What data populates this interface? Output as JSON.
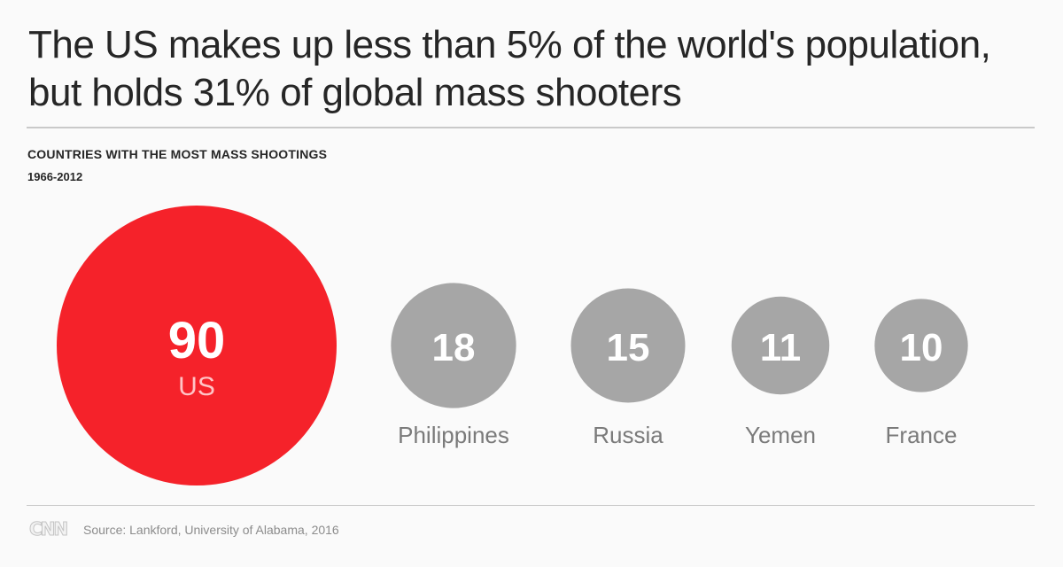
{
  "header": {
    "title_line1": "The US makes up less than 5% of the world's population,",
    "title_line2": "but holds 31% of global mass shooters",
    "subtitle": "COUNTRIES WITH THE MOST MASS SHOOTINGS",
    "period": "1966-2012"
  },
  "chart_data": {
    "type": "bubble",
    "title": "COUNTRIES WITH THE MOST MASS SHOOTINGS",
    "subtitle": "1966-2012",
    "categories": [
      "US",
      "Philippines",
      "Russia",
      "Yemen",
      "France"
    ],
    "values": [
      90,
      18,
      15,
      11,
      10
    ],
    "colors": [
      "#f5222a",
      "#a6a6a6",
      "#a6a6a6",
      "#a6a6a6",
      "#a6a6a6"
    ],
    "highlight": "US"
  },
  "footer": {
    "logo": "CNN",
    "source": "Source: Lankford, University of Alabama, 2016"
  },
  "colors": {
    "highlight": "#f5222a",
    "muted": "#a6a6a6"
  }
}
